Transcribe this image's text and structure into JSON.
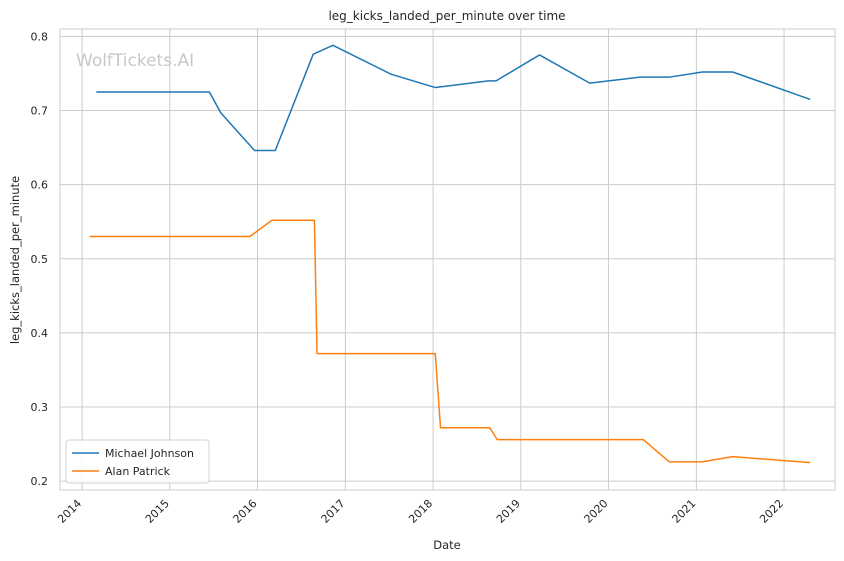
{
  "chart_data": {
    "type": "line",
    "title": "leg_kicks_landed_per_minute over time",
    "xlabel": "Date",
    "ylabel": "leg_kicks_landed_per_minute",
    "watermark": "WolfTickets.AI",
    "xlim": [
      "2013-10-01",
      "2022-08-01"
    ],
    "ylim": [
      0.188,
      0.81
    ],
    "x_ticks": [
      "2014",
      "2015",
      "2016",
      "2017",
      "2018",
      "2019",
      "2020",
      "2021",
      "2022"
    ],
    "y_ticks": [
      "0.2",
      "0.3",
      "0.4",
      "0.5",
      "0.6",
      "0.7",
      "0.8"
    ],
    "grid": true,
    "legend_position": "bottom-left",
    "series": [
      {
        "name": "Michael Johnson",
        "color": "#1f77b4",
        "points": [
          [
            "2014-03-01",
            0.725
          ],
          [
            "2015-06-15",
            0.725
          ],
          [
            "2015-08-01",
            0.697
          ],
          [
            "2015-12-20",
            0.646
          ],
          [
            "2016-03-15",
            0.646
          ],
          [
            "2016-08-20",
            0.776
          ],
          [
            "2016-09-10",
            0.779
          ],
          [
            "2016-11-10",
            0.788
          ],
          [
            "2017-07-10",
            0.749
          ],
          [
            "2018-01-10",
            0.731
          ],
          [
            "2018-08-20",
            0.74
          ],
          [
            "2018-09-20",
            0.74
          ],
          [
            "2019-03-20",
            0.775
          ],
          [
            "2019-10-15",
            0.737
          ],
          [
            "2020-05-10",
            0.745
          ],
          [
            "2020-09-10",
            0.745
          ],
          [
            "2021-01-25",
            0.752
          ],
          [
            "2021-06-01",
            0.752
          ],
          [
            "2022-04-20",
            0.715
          ]
        ]
      },
      {
        "name": "Alan Patrick",
        "color": "#ff7f0e",
        "points": [
          [
            "2014-02-01",
            0.53
          ],
          [
            "2015-12-01",
            0.53
          ],
          [
            "2016-03-01",
            0.552
          ],
          [
            "2016-08-25",
            0.552
          ],
          [
            "2016-09-05",
            0.372
          ],
          [
            "2018-01-10",
            0.372
          ],
          [
            "2018-02-01",
            0.272
          ],
          [
            "2018-08-25",
            0.272
          ],
          [
            "2018-09-25",
            0.256
          ],
          [
            "2020-05-25",
            0.256
          ],
          [
            "2020-09-10",
            0.226
          ],
          [
            "2021-01-25",
            0.226
          ],
          [
            "2021-06-01",
            0.233
          ],
          [
            "2022-04-20",
            0.225
          ]
        ]
      }
    ]
  }
}
